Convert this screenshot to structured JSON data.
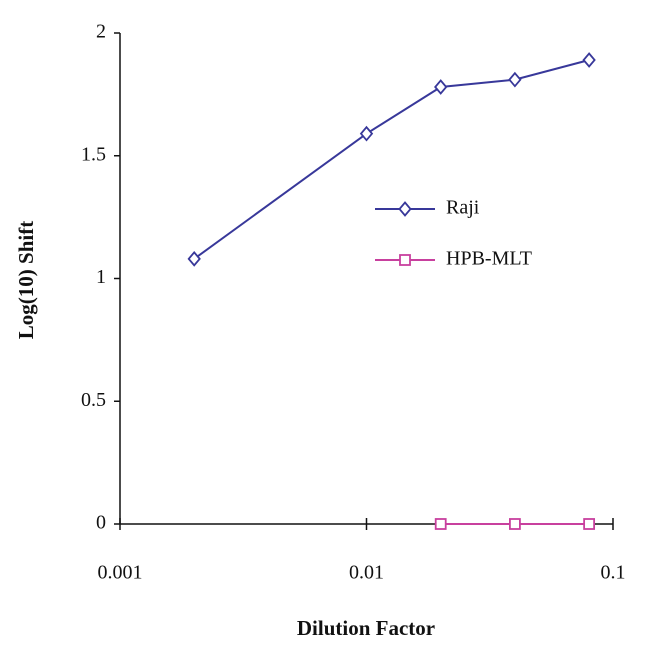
{
  "chart_data": {
    "type": "line",
    "x_label": "Dilution Factor",
    "y_label": "Log(10) Shift",
    "x_scale": "log",
    "xlim": [
      0.001,
      0.1
    ],
    "xticks": [
      0.001,
      0.01,
      0.1
    ],
    "ylim": [
      0,
      2
    ],
    "yticks": [
      0,
      0.5,
      1,
      1.5,
      2
    ],
    "legend": "center right",
    "series": [
      {
        "name": "Raji",
        "color": "#38389a",
        "marker": "diamond",
        "x": [
          0.002,
          0.01,
          0.02,
          0.04,
          0.08
        ],
        "values": [
          1.08,
          1.59,
          1.78,
          1.81,
          1.89
        ]
      },
      {
        "name": "HPB-MLT",
        "color": "#c8409e",
        "marker": "square",
        "x": [
          0.02,
          0.04,
          0.08
        ],
        "values": [
          0,
          0,
          0
        ]
      }
    ]
  }
}
